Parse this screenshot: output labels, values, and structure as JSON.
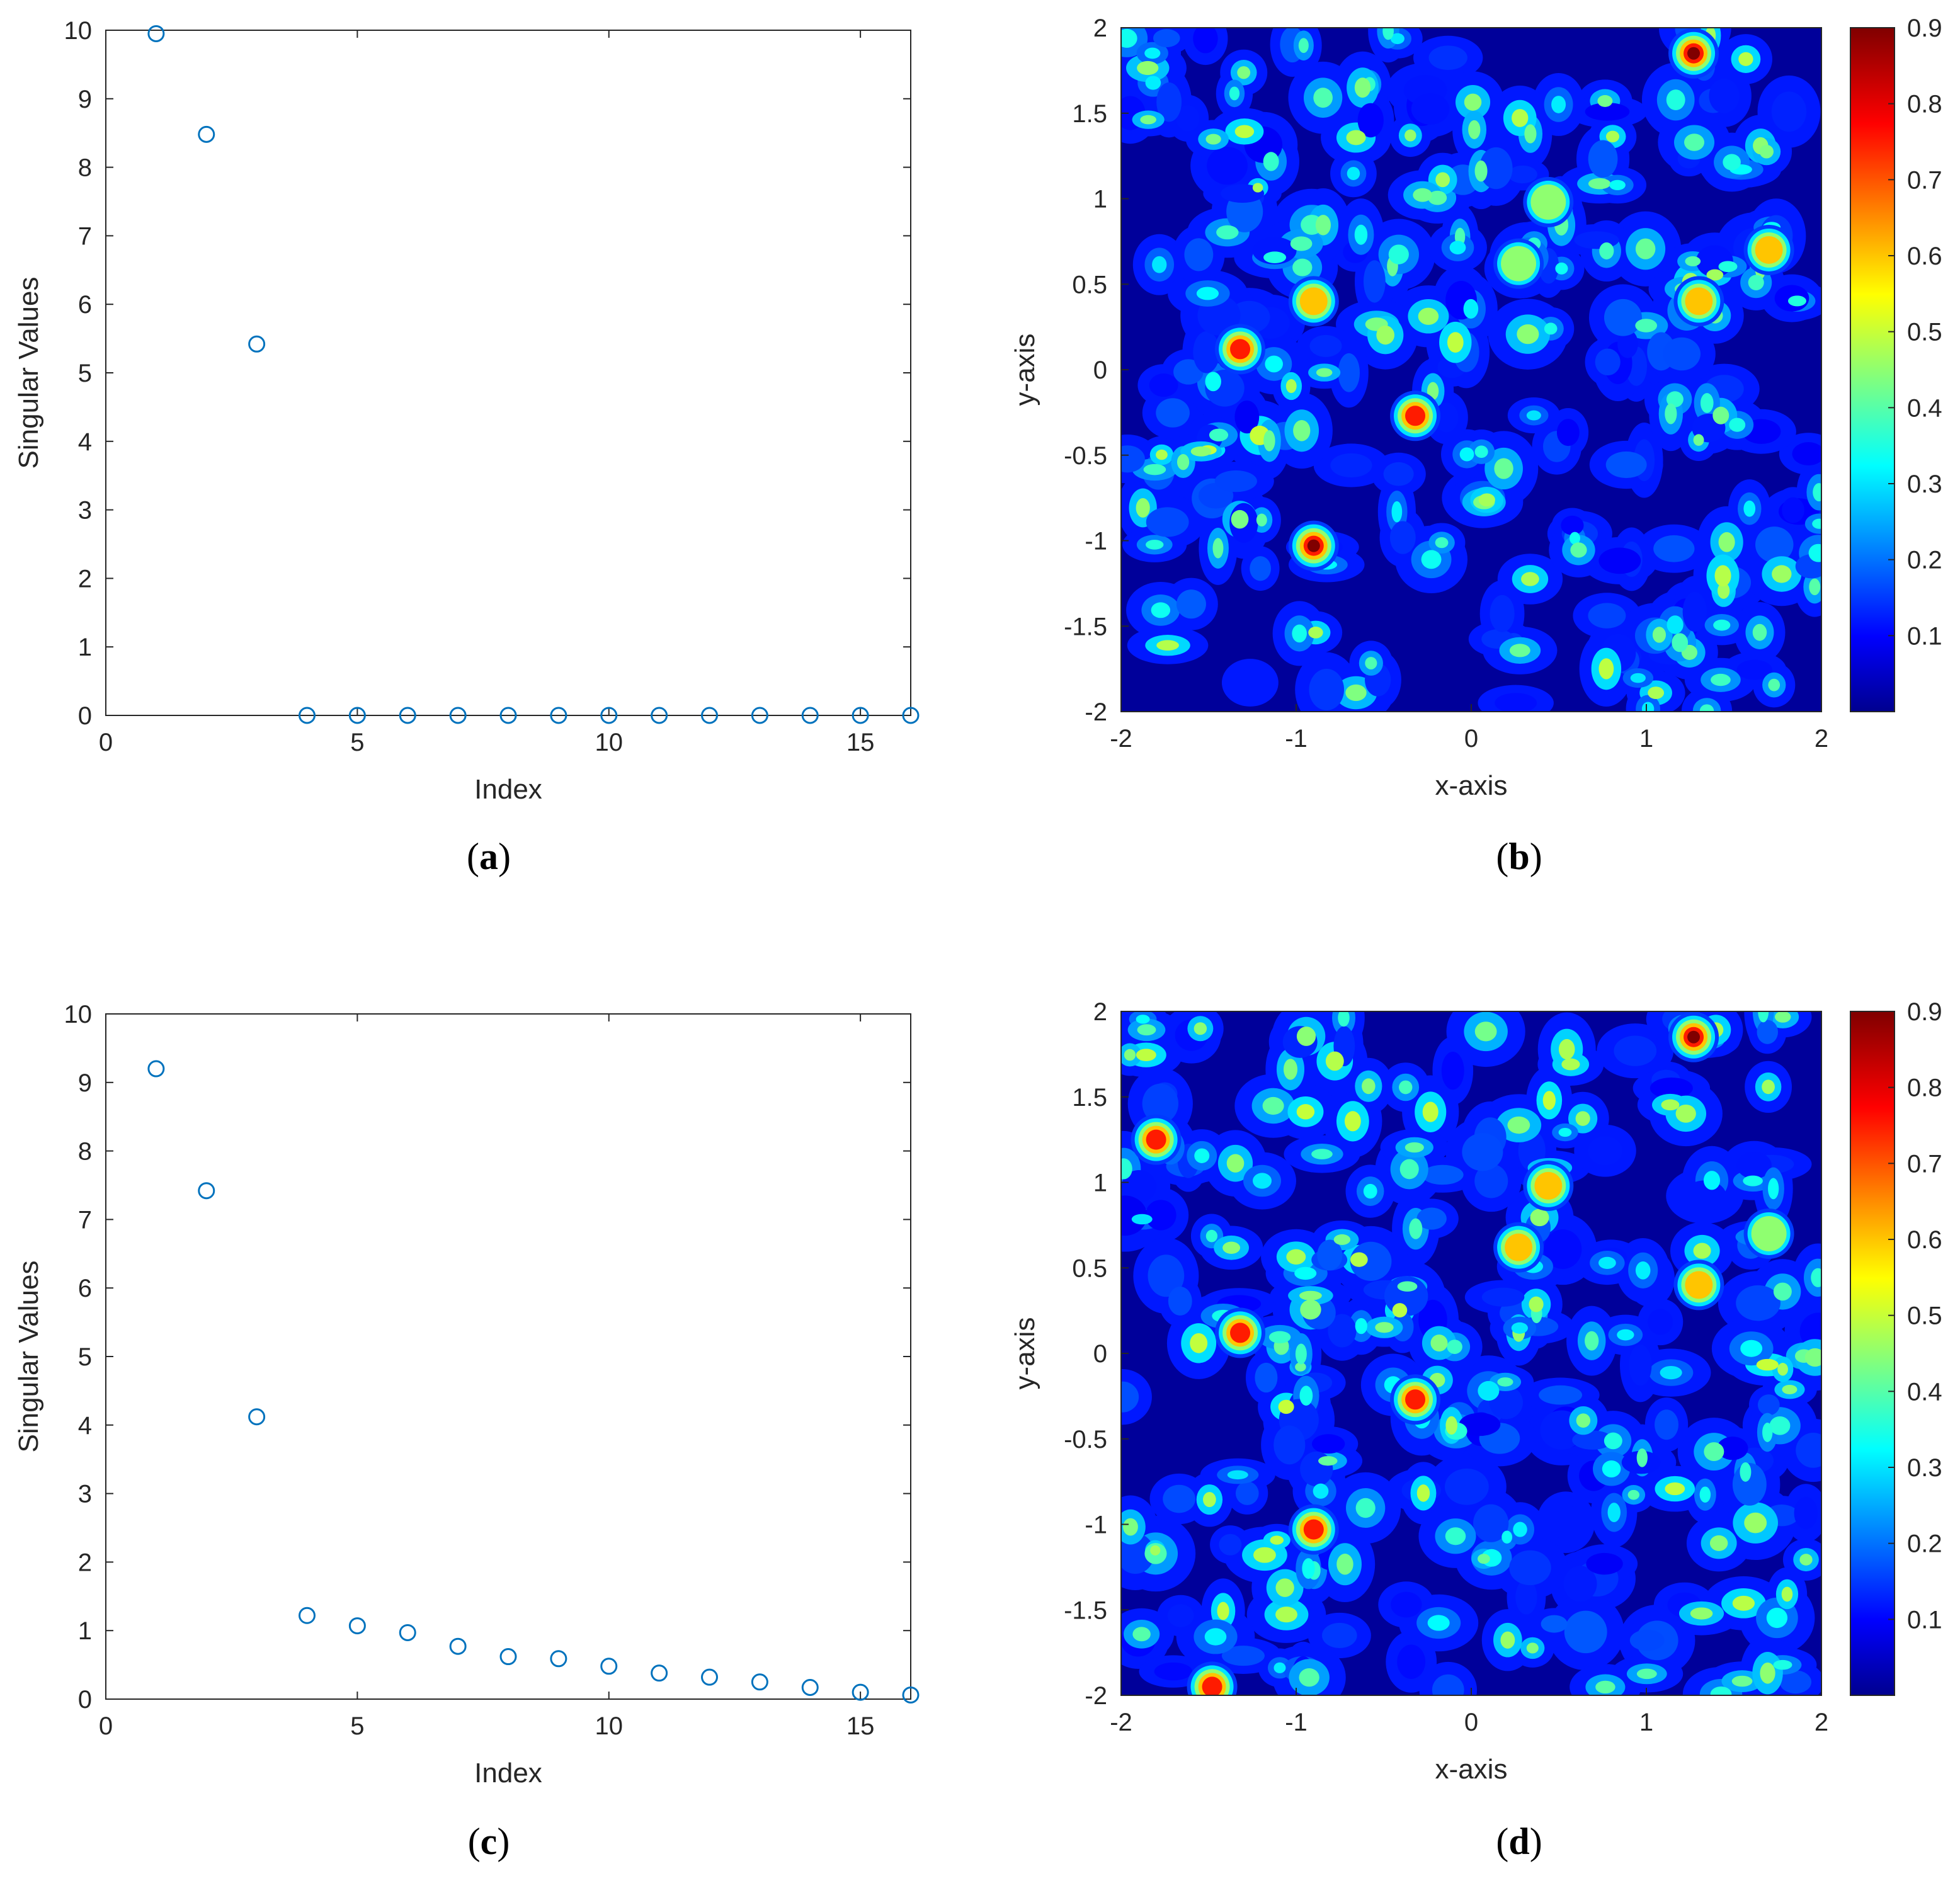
{
  "colors": {
    "marker": "#0072BD",
    "axis": "#262626"
  },
  "jet_stops": [
    "#00008F",
    "#0000FF",
    "#00FFFF",
    "#FFFF00",
    "#FF0000",
    "#800000"
  ],
  "panels": [
    {
      "id": "a",
      "label_letter": "a",
      "label_open": "(",
      "label_close": ")"
    },
    {
      "id": "b",
      "label_letter": "b",
      "label_open": "(",
      "label_close": ")"
    },
    {
      "id": "c",
      "label_letter": "c",
      "label_open": "(",
      "label_close": ")"
    },
    {
      "id": "d",
      "label_letter": "d",
      "label_open": "(",
      "label_close": ")"
    }
  ],
  "chart_data": [
    {
      "id": "a",
      "type": "scatter",
      "xlabel": "Index",
      "ylabel": "Singular Values",
      "xlim": [
        0,
        16
      ],
      "ylim": [
        0,
        10
      ],
      "xticks": [
        0,
        5,
        10,
        15
      ],
      "yticks": [
        0,
        1,
        2,
        3,
        4,
        5,
        6,
        7,
        8,
        9,
        10
      ],
      "marker": "circle-open",
      "x": [
        1,
        2,
        3,
        4,
        5,
        6,
        7,
        8,
        9,
        10,
        11,
        12,
        13,
        14,
        15,
        16
      ],
      "y": [
        9.95,
        8.48,
        5.42,
        0,
        0,
        0,
        0,
        0,
        0,
        0,
        0,
        0,
        0,
        0,
        0,
        0
      ]
    },
    {
      "id": "b",
      "type": "heatmap",
      "xlabel": "x-axis",
      "ylabel": "y-axis",
      "xlim": [
        -2,
        2
      ],
      "ylim": [
        -2,
        2
      ],
      "xticks": [
        "-2",
        "-1",
        "0",
        "1",
        "2"
      ],
      "yticks": [
        "-2",
        "-1.5",
        "-1",
        "-0.5",
        "0",
        "0.5",
        "1",
        "1.5",
        "2"
      ],
      "colormap": "jet",
      "clim": [
        0,
        0.9
      ],
      "colorbar_ticks": [
        "0.1",
        "0.2",
        "0.3",
        "0.4",
        "0.5",
        "0.6",
        "0.7",
        "0.8",
        "0.9"
      ],
      "peaks": [
        {
          "x": 1.27,
          "y": 1.85,
          "value": 0.9
        },
        {
          "x": -0.9,
          "y": -1.03,
          "value": 0.9
        },
        {
          "x": -0.32,
          "y": -0.27,
          "value": 0.88
        },
        {
          "x": -1.32,
          "y": 0.12,
          "value": 0.78
        },
        {
          "x": 1.7,
          "y": 0.7,
          "value": 0.7
        },
        {
          "x": 1.3,
          "y": 0.4,
          "value": 0.62
        },
        {
          "x": -0.9,
          "y": 0.4,
          "value": 0.6
        },
        {
          "x": 0.44,
          "y": 0.98,
          "value": 0.58
        },
        {
          "x": 0.27,
          "y": 0.62,
          "value": 0.55
        }
      ]
    },
    {
      "id": "c",
      "type": "scatter",
      "xlabel": "Index",
      "ylabel": "Singular Values",
      "xlim": [
        0,
        16
      ],
      "ylim": [
        0,
        10
      ],
      "xticks": [
        0,
        5,
        10,
        15
      ],
      "yticks": [
        0,
        1,
        2,
        3,
        4,
        5,
        6,
        7,
        8,
        9,
        10
      ],
      "marker": "circle-open",
      "x": [
        1,
        2,
        3,
        4,
        5,
        6,
        7,
        8,
        9,
        10,
        11,
        12,
        13,
        14,
        15,
        16
      ],
      "y": [
        9.2,
        7.42,
        4.12,
        1.22,
        1.07,
        0.97,
        0.77,
        0.62,
        0.59,
        0.48,
        0.38,
        0.32,
        0.25,
        0.17,
        0.1,
        0.06
      ]
    },
    {
      "id": "d",
      "type": "heatmap",
      "xlabel": "x-axis",
      "ylabel": "y-axis",
      "xlim": [
        -2,
        2
      ],
      "ylim": [
        -2,
        2
      ],
      "xticks": [
        "-2",
        "-1",
        "0",
        "1",
        "2"
      ],
      "yticks": [
        "-2",
        "-1.5",
        "-1",
        "-0.5",
        "0",
        "0.5",
        "1",
        "1.5",
        "2"
      ],
      "colormap": "jet",
      "clim": [
        0,
        0.9
      ],
      "colorbar_ticks": [
        "0.1",
        "0.2",
        "0.3",
        "0.4",
        "0.5",
        "0.6",
        "0.7",
        "0.8",
        "0.9"
      ],
      "peaks": [
        {
          "x": 1.27,
          "y": 1.85,
          "value": 0.9
        },
        {
          "x": -0.9,
          "y": -1.03,
          "value": 0.85
        },
        {
          "x": -0.32,
          "y": -0.27,
          "value": 0.8
        },
        {
          "x": -1.32,
          "y": 0.12,
          "value": 0.75
        },
        {
          "x": -1.8,
          "y": 1.25,
          "value": 0.75
        },
        {
          "x": -1.48,
          "y": -1.95,
          "value": 0.75
        },
        {
          "x": 1.3,
          "y": 0.4,
          "value": 0.7
        },
        {
          "x": 0.27,
          "y": 0.62,
          "value": 0.6
        },
        {
          "x": 0.44,
          "y": 0.98,
          "value": 0.6
        },
        {
          "x": 1.7,
          "y": 0.7,
          "value": 0.55
        }
      ]
    }
  ]
}
